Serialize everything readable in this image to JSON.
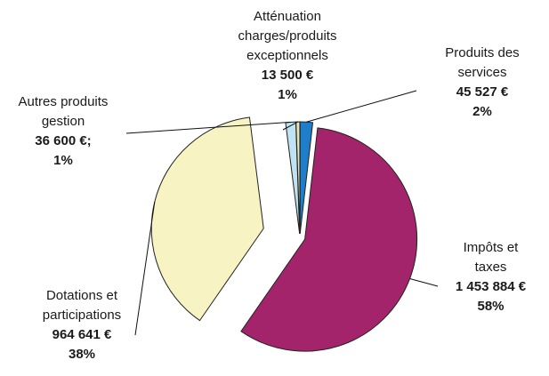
{
  "chart_data": {
    "type": "pie",
    "slices": [
      {
        "label": "Produits des services",
        "value_text": "45 527 €",
        "pct_text": "2%",
        "value": 45527,
        "percent": 2,
        "color": "#1f7ec9"
      },
      {
        "label": "Impôts et taxes",
        "value_text": "1 453 884 €",
        "pct_text": "58%",
        "value": 1453884,
        "percent": 58,
        "color": "#a3246b"
      },
      {
        "label": "Dotations et participations",
        "value_text": "964 641 €",
        "pct_text": "38%",
        "value": 964641,
        "percent": 38,
        "color": "#f7f3c2"
      },
      {
        "label": "Autres produits gestion",
        "value_text": "36 600 €;",
        "pct_text": "1%",
        "value": 36600,
        "percent": 1,
        "color": "#bfe3f2"
      },
      {
        "label": "Atténuation charges/produits exceptionnels",
        "value_text": "13 500 €",
        "pct_text": "1%",
        "value": 13500,
        "percent": 1,
        "color": "#e9e6b4"
      }
    ],
    "labels": {
      "services_l1": "Produits des",
      "services_l2": "services",
      "impots_l1": "Impôts et",
      "impots_l2": "taxes",
      "dotations_l1": "Dotations et",
      "dotations_l2": "participations",
      "autres_l1": "Autres produits",
      "autres_l2": "gestion",
      "attenuation_l1": "Atténuation",
      "attenuation_l2": "charges/produits",
      "attenuation_l3": "exceptionnels"
    }
  }
}
